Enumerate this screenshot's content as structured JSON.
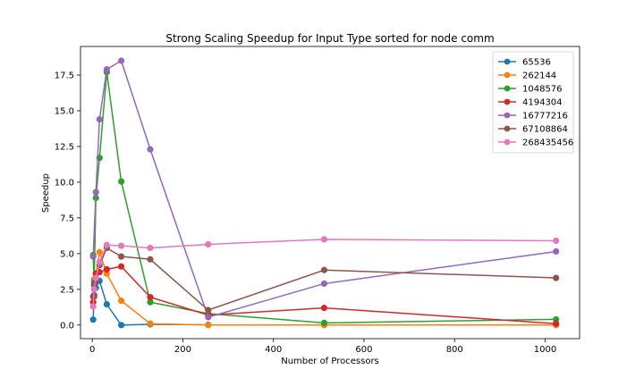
{
  "chart_data": {
    "type": "line",
    "title": "Strong Scaling Speedup for Input Type sorted for node comm",
    "xlabel": "Number of Processors",
    "ylabel": "Speedup",
    "xlim": [
      -26,
      1076
    ],
    "ylim": [
      -0.95,
      19.5
    ],
    "xticks": [
      0,
      200,
      400,
      600,
      800,
      1000
    ],
    "yticks": [
      0.0,
      2.5,
      5.0,
      7.5,
      10.0,
      12.5,
      15.0,
      17.5
    ],
    "ytick_labels": [
      "0.0",
      "2.5",
      "5.0",
      "7.5",
      "10.0",
      "12.5",
      "15.0",
      "17.5"
    ],
    "xtick_labels": [
      "0",
      "200",
      "400",
      "600",
      "800",
      "1000"
    ],
    "grid": false,
    "legend_position": "top-right",
    "x": [
      2,
      4,
      8,
      16,
      32,
      64,
      128,
      256,
      512,
      1024
    ],
    "series": [
      {
        "name": "65536",
        "color": "#1f77b4",
        "values": [
          0.38,
          2.1,
          2.6,
          3.1,
          1.45,
          0.0,
          0.05,
          0.02,
          null,
          null
        ]
      },
      {
        "name": "262144",
        "color": "#ff7f0e",
        "values": [
          2.0,
          3.2,
          3.6,
          5.1,
          3.6,
          1.7,
          0.1,
          0.0,
          0.0,
          0.0
        ]
      },
      {
        "name": "1048576",
        "color": "#2ca02c",
        "values": [
          4.9,
          3.0,
          8.9,
          11.7,
          17.7,
          10.05,
          1.6,
          0.8,
          0.15,
          0.4
        ]
      },
      {
        "name": "4194304",
        "color": "#d62728",
        "values": [
          1.6,
          2.0,
          3.6,
          3.7,
          3.9,
          4.1,
          1.95,
          0.7,
          1.2,
          0.1
        ]
      },
      {
        "name": "16777216",
        "color": "#9467bd",
        "values": [
          4.8,
          9.3,
          14.4,
          17.9,
          18.5,
          12.3,
          0.55,
          2.9,
          5.15,
          null
        ]
      },
      {
        "name": "67108864",
        "color": "#8c564b",
        "values": [
          2.0,
          2.8,
          3.1,
          4.2,
          5.4,
          4.8,
          4.6,
          1.05,
          3.85,
          3.3
        ]
      },
      {
        "name": "268435456",
        "color": "#e377c2",
        "values": [
          1.3,
          2.5,
          3.3,
          4.4,
          5.6,
          5.55,
          5.4,
          5.65,
          6.0,
          5.9
        ]
      }
    ],
    "series_x_override": {
      "65536": [
        2,
        4,
        8,
        16,
        32,
        64,
        128,
        256
      ],
      "16777216": [
        2,
        8,
        16,
        32,
        64,
        128,
        256,
        512,
        1024
      ]
    }
  }
}
